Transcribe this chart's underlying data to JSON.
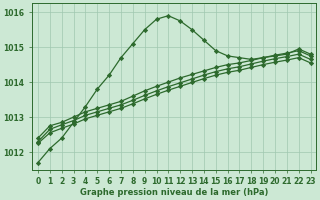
{
  "xlabel": "Graphe pression niveau de la mer (hPa)",
  "x": [
    0,
    1,
    2,
    3,
    4,
    5,
    6,
    7,
    8,
    9,
    10,
    11,
    12,
    13,
    14,
    15,
    16,
    17,
    18,
    19,
    20,
    21,
    22,
    23
  ],
  "line1": [
    1011.7,
    1012.1,
    1012.4,
    1012.85,
    1013.3,
    1013.8,
    1014.2,
    1014.7,
    1015.1,
    1015.5,
    1015.8,
    1015.9,
    1015.75,
    1015.5,
    1015.2,
    1014.9,
    1014.75,
    1014.7,
    1014.65,
    1014.7,
    1014.75,
    1014.8,
    1014.95,
    1014.8
  ],
  "line2": [
    1012.4,
    1012.75,
    1012.85,
    1013.0,
    1013.15,
    1013.25,
    1013.35,
    1013.45,
    1013.6,
    1013.75,
    1013.88,
    1014.0,
    1014.12,
    1014.22,
    1014.32,
    1014.42,
    1014.5,
    1014.55,
    1014.62,
    1014.7,
    1014.77,
    1014.83,
    1014.9,
    1014.75
  ],
  "line3": [
    1012.3,
    1012.65,
    1012.78,
    1012.9,
    1013.05,
    1013.15,
    1013.25,
    1013.35,
    1013.48,
    1013.62,
    1013.75,
    1013.87,
    1013.98,
    1014.09,
    1014.2,
    1014.3,
    1014.38,
    1014.44,
    1014.52,
    1014.6,
    1014.67,
    1014.73,
    1014.8,
    1014.65
  ],
  "line4": [
    1012.25,
    1012.55,
    1012.68,
    1012.8,
    1012.95,
    1013.05,
    1013.15,
    1013.25,
    1013.38,
    1013.52,
    1013.65,
    1013.77,
    1013.88,
    1013.99,
    1014.1,
    1014.2,
    1014.28,
    1014.34,
    1014.42,
    1014.5,
    1014.57,
    1014.63,
    1014.7,
    1014.55
  ],
  "line_color": "#2d6a2d",
  "bg_color": "#cce8d4",
  "grid_color": "#a0c8b0",
  "ylim_min": 1011.5,
  "ylim_max": 1016.25,
  "yticks": [
    1012,
    1013,
    1014,
    1015,
    1016
  ],
  "marker": "D",
  "marker_size": 2.2,
  "line_width": 0.9,
  "tick_fontsize": 5.5,
  "label_fontsize": 6.0
}
